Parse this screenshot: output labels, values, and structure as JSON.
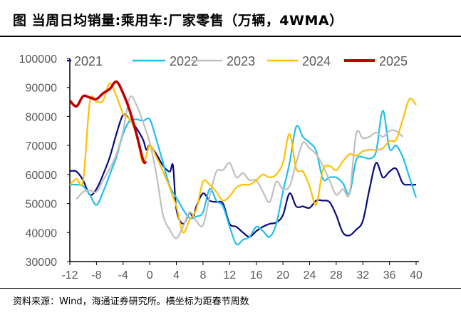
{
  "title": "图  当周日均销量:乘用车:厂家零售（万辆，4WMA）",
  "source": "资料来源：Wind，海通证券研究所。横坐标为距春节周数",
  "chart_data": {
    "type": "line",
    "title": "图  当周日均销量:乘用车:厂家零售（万辆，4WMA）",
    "xlim": [
      -12,
      40
    ],
    "ylim": [
      30000,
      100000
    ],
    "xticks": [
      -12,
      -8,
      -4,
      0,
      4,
      8,
      12,
      16,
      20,
      24,
      28,
      32,
      36,
      40
    ],
    "yticks": [
      30000,
      40000,
      50000,
      60000,
      70000,
      80000,
      90000,
      100000
    ],
    "grid": false,
    "legend": "top",
    "series": [
      {
        "name": "2021",
        "color": "#0a0a7a",
        "x": [
          -12,
          -11,
          -10,
          -9,
          -8,
          -7,
          -6,
          -5,
          -4,
          -3,
          -2,
          -1,
          -0.5,
          0,
          1,
          2,
          3,
          3.5,
          4,
          5,
          6,
          6.5,
          7,
          8,
          9,
          10,
          11,
          12,
          13,
          14,
          15,
          16,
          17,
          18,
          19,
          20,
          21,
          22,
          23,
          24,
          25,
          26,
          27,
          28,
          29,
          30,
          31,
          32,
          33,
          34,
          35,
          36,
          37,
          38,
          39,
          40
        ],
        "y": [
          61200,
          61000,
          58000,
          53000,
          55000,
          60000,
          66000,
          74000,
          80500,
          79000,
          76000,
          72000,
          68500,
          70000,
          67000,
          63000,
          61000,
          63000,
          48000,
          43000,
          47000,
          45000,
          49000,
          53500,
          51000,
          50500,
          50000,
          43000,
          42000,
          40000,
          38500,
          40500,
          42000,
          43000,
          43500,
          46000,
          53500,
          49000,
          49000,
          48500,
          51000,
          51000,
          50500,
          46000,
          40000,
          39000,
          41000,
          44000,
          55000,
          64000,
          59000,
          61000,
          62000,
          57000,
          56500,
          56500
        ]
      },
      {
        "name": "2022",
        "color": "#1ec0f0",
        "x": [
          -12,
          -11,
          -10,
          -9,
          -8,
          -7,
          -6,
          -5,
          -4,
          -3,
          -2,
          -1,
          0,
          1,
          2,
          3,
          4,
          5,
          6,
          7,
          8,
          9,
          10,
          11,
          12,
          13,
          14,
          15,
          16,
          17,
          18,
          19,
          20,
          21,
          22,
          23,
          24,
          25,
          26,
          27,
          28,
          29,
          30,
          31,
          32,
          33,
          34,
          35,
          36,
          37,
          38,
          39,
          40
        ],
        "y": [
          56500,
          56500,
          56000,
          53000,
          49500,
          54000,
          60000,
          66000,
          74000,
          78500,
          79000,
          78500,
          79000,
          72000,
          64000,
          56000,
          52000,
          48000,
          45000,
          45500,
          47000,
          55000,
          51000,
          49000,
          42000,
          36000,
          37500,
          38500,
          42000,
          40500,
          38500,
          43000,
          54000,
          64000,
          76500,
          73000,
          71000,
          68000,
          58500,
          59000,
          59000,
          57000,
          53500,
          65000,
          66000,
          65500,
          68000,
          82000,
          69000,
          70000,
          66000,
          59000,
          52000
        ]
      },
      {
        "name": "2023",
        "color": "#bfbfbf",
        "x": [
          -11,
          -10,
          -9,
          -8,
          -7,
          -6,
          -5,
          -4,
          -3,
          -2,
          -1,
          0,
          1,
          2,
          3,
          4,
          5,
          6,
          7,
          8,
          9,
          10,
          11,
          12,
          13,
          14,
          15,
          16,
          17,
          18,
          19,
          20,
          21,
          22,
          23,
          24,
          25,
          26,
          27,
          28,
          29,
          30,
          31,
          32,
          33,
          34,
          35,
          36,
          37,
          38
        ],
        "y": [
          51500,
          54000,
          54500,
          54000,
          58000,
          62000,
          67000,
          75000,
          86500,
          84000,
          78000,
          71000,
          60000,
          46000,
          41000,
          38000,
          42000,
          47000,
          44000,
          42500,
          52500,
          61000,
          61500,
          64000,
          59000,
          60500,
          58000,
          58000,
          54000,
          50500,
          57500,
          55000,
          56000,
          64000,
          71000,
          69000,
          67000,
          63000,
          58000,
          53000,
          55000,
          53500,
          74000,
          72500,
          73000,
          74500,
          73000,
          75000,
          75000,
          73000
        ]
      },
      {
        "name": "2024",
        "color": "#ffc000",
        "x": [
          -12,
          -11,
          -10,
          -9,
          -8,
          -7,
          -6,
          -5,
          -4,
          -3,
          -2,
          -1,
          0,
          1,
          2,
          3,
          4,
          5,
          6,
          7,
          8,
          9,
          10,
          11,
          12,
          13,
          14,
          15,
          16,
          17,
          18,
          19,
          20,
          21,
          22,
          23,
          24,
          25,
          26,
          27,
          28,
          29,
          30,
          31,
          32,
          33,
          34,
          35,
          36,
          37,
          38,
          39,
          40
        ],
        "y": [
          56500,
          58500,
          58000,
          85000,
          85000,
          85500,
          91500,
          87000,
          81000,
          79000,
          74000,
          64000,
          70000,
          66000,
          61000,
          55500,
          49000,
          40000,
          44500,
          48000,
          57500,
          56500,
          54000,
          51000,
          52500,
          55500,
          56500,
          56500,
          58000,
          60000,
          59000,
          60000,
          64000,
          74000,
          62000,
          61000,
          56000,
          49600,
          61500,
          63000,
          61500,
          64500,
          67000,
          66500,
          68000,
          68500,
          68500,
          69000,
          71500,
          72000,
          79000,
          86000,
          84000
        ]
      },
      {
        "name": "2025",
        "color": "#c00000",
        "x": [
          -12,
          -11,
          -10,
          -9,
          -8,
          -7,
          -6,
          -5,
          -4,
          -3,
          -2,
          -1,
          -0.5
        ],
        "y": [
          85500,
          83500,
          87000,
          86500,
          86000,
          88000,
          89500,
          92000,
          88000,
          82000,
          74000,
          65000,
          64100
        ]
      }
    ]
  }
}
